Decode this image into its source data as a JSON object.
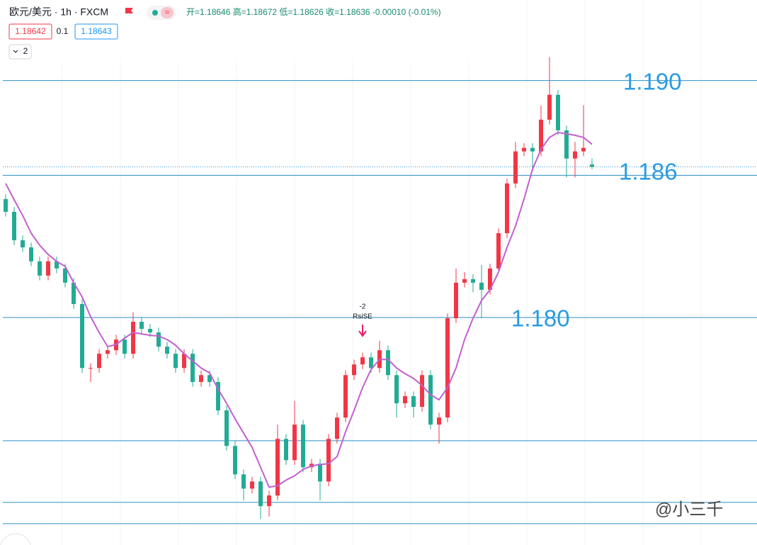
{
  "header": {
    "symbol": "欧元/美元 · 1h · FXCM",
    "ohlc_text": "开=1.18646  高=1.18672  低=1.18626  收=1.18636  -0.00010 (-0.01%)",
    "sell": "1.18642",
    "spread": "0.1",
    "buy": "1.18643",
    "indicators": "2"
  },
  "signal": {
    "value": "-2",
    "label": "RsiSE"
  },
  "watermark": "@小三千",
  "chart_data": {
    "type": "candlestick",
    "up_color": "#f23645",
    "down_color": "#22ab94",
    "ylim": [
      1.1704,
      1.1934
    ],
    "open": [
      1.185,
      1.18446,
      1.18326,
      1.18296,
      1.18237,
      1.18177,
      1.18237,
      1.18207,
      1.18147,
      1.18057,
      1.17787,
      1.17787,
      1.17847,
      1.17862,
      1.17907,
      1.17847,
      1.17982,
      1.17952,
      1.17937,
      1.17877,
      1.17847,
      1.17787,
      1.17847,
      1.17728,
      1.17757,
      1.17728,
      1.17608,
      1.17458,
      1.17338,
      1.17278,
      1.17308,
      1.17204,
      1.17249,
      1.17488,
      1.17398,
      1.17548,
      1.17368,
      1.17383,
      1.17308,
      1.17488,
      1.17578,
      1.17757,
      1.17802,
      1.17832,
      1.17787,
      1.17862,
      1.17757,
      1.17638,
      1.17668,
      1.17623,
      1.17757,
      1.17548,
      1.17578,
      1.17997,
      1.18147,
      1.18162,
      1.18147,
      1.18117,
      1.18207,
      1.18356,
      1.18566,
      1.18701,
      1.18716,
      1.18701,
      1.18835,
      1.1894,
      1.1879,
      1.18671,
      1.18701,
      1.18646
    ],
    "high": [
      1.1852,
      1.18466,
      1.18346,
      1.18316,
      1.18257,
      1.18257,
      1.18257,
      1.18227,
      1.18167,
      1.18077,
      1.17807,
      1.17867,
      1.17882,
      1.17927,
      1.17927,
      1.18022,
      1.18002,
      1.17972,
      1.17957,
      1.17897,
      1.17867,
      1.17867,
      1.17867,
      1.17777,
      1.17777,
      1.17748,
      1.17628,
      1.17478,
      1.17358,
      1.17328,
      1.17328,
      1.17269,
      1.17548,
      1.17508,
      1.17648,
      1.17568,
      1.17403,
      1.17403,
      1.17508,
      1.17598,
      1.17777,
      1.17822,
      1.17852,
      1.17852,
      1.17902,
      1.17882,
      1.17777,
      1.17688,
      1.17688,
      1.17777,
      1.17777,
      1.17598,
      1.18017,
      1.18207,
      1.18192,
      1.18182,
      1.18222,
      1.18227,
      1.18376,
      1.18586,
      1.18741,
      1.18736,
      1.18736,
      1.18895,
      1.19099,
      1.1896,
      1.1881,
      1.18741,
      1.18896,
      1.18672
    ],
    "low": [
      1.18426,
      1.18306,
      1.18276,
      1.18217,
      1.18157,
      1.18157,
      1.18187,
      1.18127,
      1.18037,
      1.17767,
      1.17727,
      1.17767,
      1.17827,
      1.17842,
      1.17827,
      1.17827,
      1.17932,
      1.17917,
      1.17857,
      1.17827,
      1.17767,
      1.17767,
      1.17708,
      1.17708,
      1.17708,
      1.17588,
      1.17438,
      1.17318,
      1.17228,
      1.17258,
      1.1715,
      1.1716,
      1.17229,
      1.17378,
      1.17378,
      1.17348,
      1.17348,
      1.17228,
      1.17288,
      1.17468,
      1.17558,
      1.17737,
      1.17782,
      1.17767,
      1.17767,
      1.17737,
      1.17578,
      1.17618,
      1.17578,
      1.17603,
      1.17528,
      1.17468,
      1.17558,
      1.17977,
      1.18127,
      1.18107,
      1.17997,
      1.18097,
      1.18187,
      1.18336,
      1.18546,
      1.18681,
      1.18621,
      1.18681,
      1.18815,
      1.1877,
      1.18591,
      1.18591,
      1.18681,
      1.18626
    ],
    "close": [
      1.18446,
      1.18326,
      1.18296,
      1.18237,
      1.18177,
      1.18237,
      1.18207,
      1.18147,
      1.18057,
      1.17787,
      1.17787,
      1.17847,
      1.17862,
      1.17907,
      1.17847,
      1.17982,
      1.17952,
      1.17937,
      1.17877,
      1.17847,
      1.17787,
      1.17847,
      1.17728,
      1.17757,
      1.17728,
      1.17608,
      1.17458,
      1.17338,
      1.17278,
      1.17308,
      1.17204,
      1.17249,
      1.17488,
      1.17398,
      1.17548,
      1.17368,
      1.17383,
      1.17308,
      1.17488,
      1.17578,
      1.17757,
      1.17802,
      1.17832,
      1.17787,
      1.17862,
      1.17757,
      1.17638,
      1.17668,
      1.17623,
      1.17757,
      1.17548,
      1.17578,
      1.17997,
      1.18147,
      1.18162,
      1.18147,
      1.18117,
      1.18207,
      1.18356,
      1.18566,
      1.18701,
      1.18716,
      1.18701,
      1.18835,
      1.1894,
      1.1879,
      1.18671,
      1.18701,
      1.18716,
      1.18636
    ],
    "ma": {
      "color": "#c35fd0",
      "values": [
        1.18566,
        1.18497,
        1.18431,
        1.18356,
        1.18305,
        1.18266,
        1.18237,
        1.18216,
        1.18147,
        1.18087,
        1.18003,
        1.17937,
        1.17877,
        1.17886,
        1.17913,
        1.17937,
        1.17931,
        1.17925,
        1.17922,
        1.17907,
        1.17883,
        1.17847,
        1.17817,
        1.17787,
        1.17766,
        1.17698,
        1.17638,
        1.17572,
        1.17512,
        1.17452,
        1.17368,
        1.17284,
        1.1729,
        1.17314,
        1.17332,
        1.17359,
        1.17374,
        1.1738,
        1.17383,
        1.17413,
        1.17518,
        1.17608,
        1.17704,
        1.17781,
        1.17823,
        1.17823,
        1.17787,
        1.17763,
        1.17743,
        1.17713,
        1.17674,
        1.17653,
        1.17704,
        1.17787,
        1.17907,
        1.17997,
        1.18072,
        1.18117,
        1.18192,
        1.18296,
        1.18386,
        1.185,
        1.18626,
        1.1871,
        1.1876,
        1.18781,
        1.18775,
        1.18769,
        1.1876,
        1.18731
      ]
    },
    "level_color": "#2a8fc4",
    "levels": [
      {
        "value": 1.19,
        "label": "1.190"
      },
      {
        "value": 1.186,
        "label": "1.186"
      },
      {
        "value": 1.18,
        "label": "1.180"
      },
      1.1748,
      1.1722,
      1.1713
    ]
  }
}
